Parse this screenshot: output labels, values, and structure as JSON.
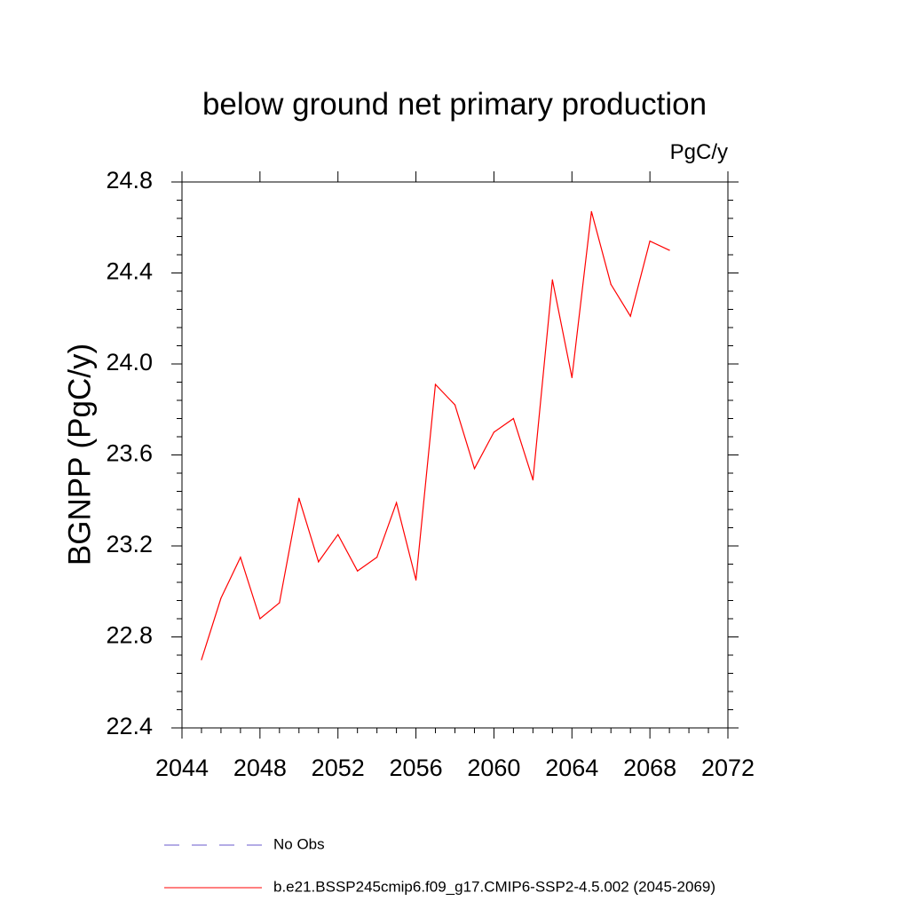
{
  "chart_data": {
    "type": "line",
    "title": "below ground net primary production",
    "units": "PgC/y",
    "ylabel": "BGNPP  (PgC/y)",
    "xlabel": "",
    "xlim": [
      2044,
      2072
    ],
    "ylim": [
      22.4,
      24.8
    ],
    "x_ticks": [
      2044,
      2048,
      2052,
      2056,
      2060,
      2064,
      2068,
      2072
    ],
    "x_tick_labels": [
      "2044",
      "2048",
      "2052",
      "2056",
      "2060",
      "2064",
      "2068",
      "2072"
    ],
    "y_ticks": [
      22.4,
      22.8,
      23.2,
      23.6,
      24.0,
      24.4,
      24.8
    ],
    "y_tick_labels": [
      "22.4",
      "22.8",
      "23.2",
      "23.6",
      "24.0",
      "24.4",
      "24.8"
    ],
    "grid": false,
    "legend_placement": "bottom",
    "series": [
      {
        "name": "No Obs",
        "style": "dashed",
        "color": "#6a5acd",
        "x": [],
        "values": []
      },
      {
        "name": "b.e21.BSSP245cmip6.f09_g17.CMIP6-SSP2-4.5.002 (2045-2069)",
        "style": "solid",
        "color": "#ff0000",
        "x": [
          2045,
          2046,
          2047,
          2048,
          2049,
          2050,
          2051,
          2052,
          2053,
          2054,
          2055,
          2056,
          2057,
          2058,
          2059,
          2060,
          2061,
          2062,
          2063,
          2064,
          2065,
          2066,
          2067,
          2068,
          2069
        ],
        "values": [
          22.7,
          22.97,
          23.15,
          22.88,
          22.95,
          23.41,
          23.13,
          23.25,
          23.09,
          23.15,
          23.39,
          23.05,
          23.91,
          23.82,
          23.54,
          23.7,
          23.76,
          23.49,
          24.37,
          23.94,
          24.67,
          24.35,
          24.21,
          24.54,
          24.5
        ]
      }
    ]
  }
}
